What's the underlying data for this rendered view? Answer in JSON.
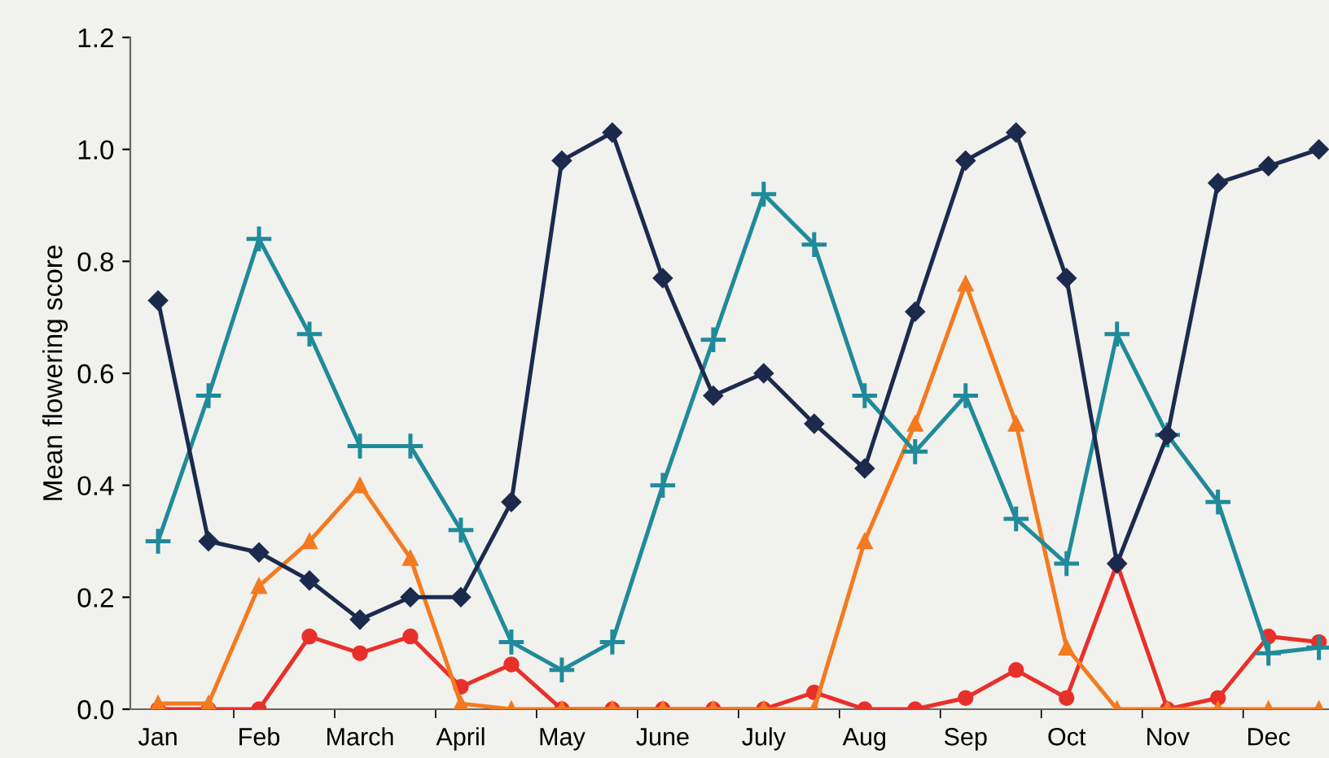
{
  "chart_data": {
    "type": "line",
    "ylabel": "Mean flowering score",
    "categories": [
      "Jan",
      null,
      "Feb",
      null,
      "March",
      null,
      "April",
      null,
      "May",
      null,
      "June",
      null,
      "July",
      null,
      "Aug",
      null,
      "Sep",
      null,
      "Oct",
      null,
      "Nov",
      null,
      "Dec",
      null
    ],
    "series": [
      {
        "color": "#1c2a4e",
        "marker": "diamond",
        "values": [
          0.73,
          0.3,
          0.28,
          0.23,
          0.16,
          0.2,
          0.2,
          0.37,
          0.98,
          1.03,
          0.77,
          0.56,
          0.6,
          0.51,
          0.43,
          0.71,
          0.98,
          1.03,
          0.77,
          0.26,
          0.49,
          0.94,
          0.97,
          1.0
        ]
      },
      {
        "color": "#1f8a9a",
        "marker": "cross",
        "values": [
          0.3,
          0.56,
          0.84,
          0.67,
          0.47,
          0.47,
          0.32,
          0.12,
          0.07,
          0.12,
          0.4,
          0.66,
          0.92,
          0.83,
          0.56,
          0.46,
          0.56,
          0.34,
          0.26,
          0.67,
          0.49,
          0.37,
          0.1,
          0.11
        ]
      },
      {
        "color": "#f47a20",
        "marker": "triangle",
        "values": [
          0.01,
          0.01,
          0.22,
          0.3,
          0.4,
          0.27,
          0.01,
          0,
          0,
          0,
          0,
          0,
          0,
          0,
          0.3,
          0.51,
          0.76,
          0.51,
          0.11,
          0,
          0,
          0,
          0,
          0
        ]
      },
      {
        "color": "#e8302a",
        "marker": "circle",
        "values": [
          0,
          0,
          0,
          0.13,
          0.1,
          0.13,
          0.04,
          0.08,
          0,
          0,
          0,
          0,
          0,
          0.03,
          0,
          0,
          0.02,
          0.07,
          0.02,
          0.26,
          0,
          0.02,
          0.13,
          0.12
        ]
      }
    ],
    "ylim": [
      0,
      1.2
    ],
    "yticks": [
      {
        "value": 0,
        "label": "0.0"
      },
      0.2,
      0.4,
      0.6,
      0.8,
      {
        "value": 1,
        "label": "1.0"
      },
      1.2
    ],
    "grid": false,
    "legend": false
  }
}
